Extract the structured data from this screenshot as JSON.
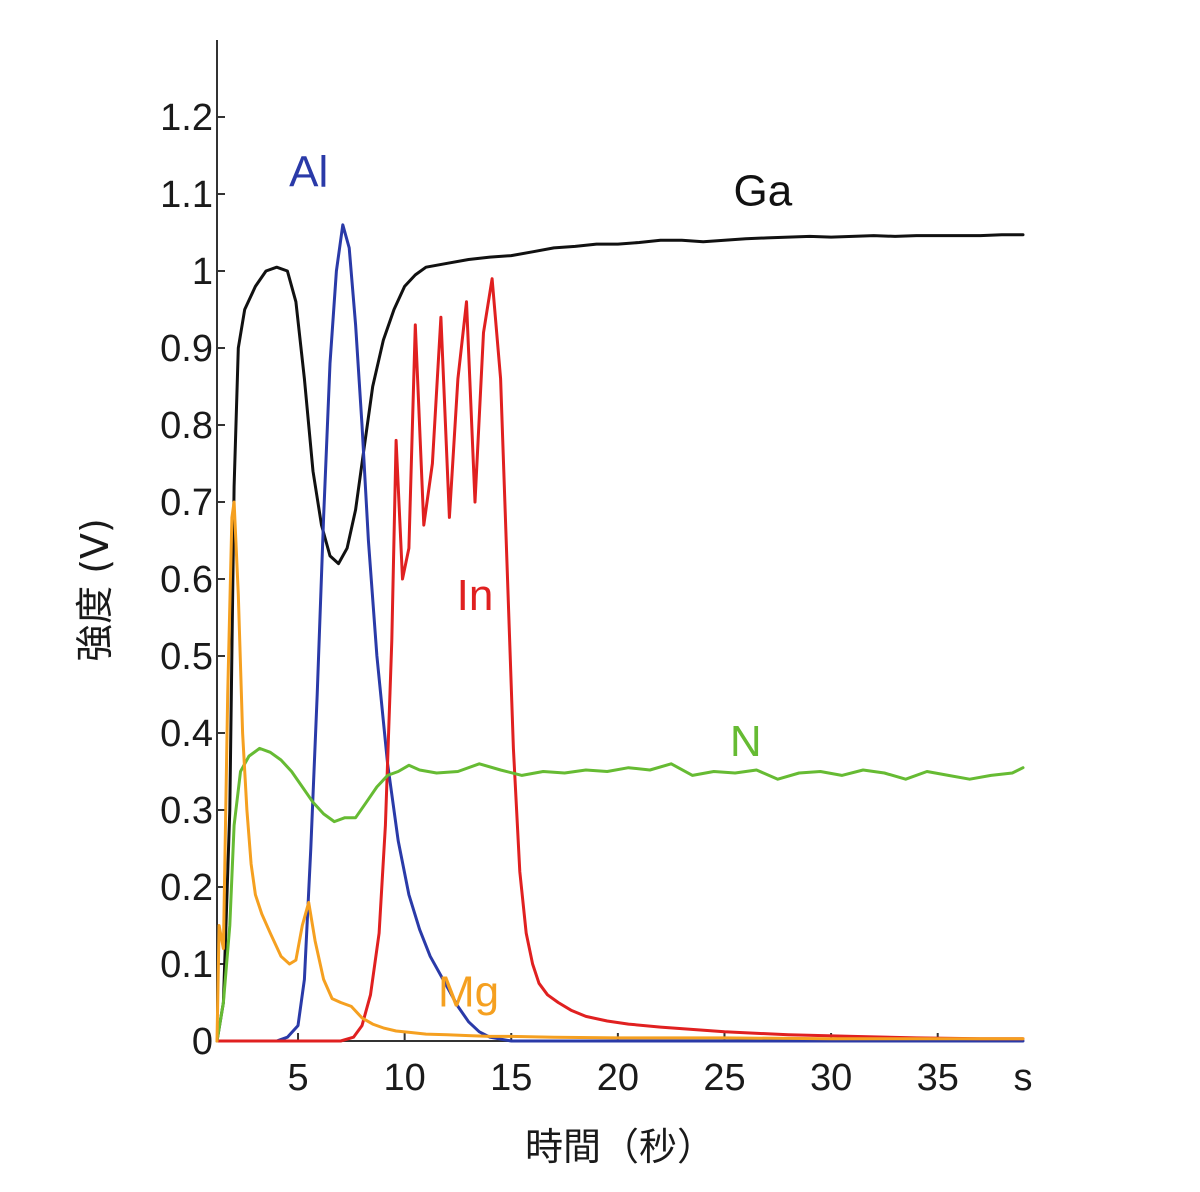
{
  "chart_data": {
    "type": "line",
    "title": "",
    "xlabel": "時間（秒）",
    "ylabel": "強度 (V)",
    "x_unit_label": "s",
    "xlim": [
      1.2,
      39
    ],
    "ylim": [
      0,
      1.3
    ],
    "x_ticks": [
      {
        "value": 5,
        "label": "5"
      },
      {
        "value": 10,
        "label": "10"
      },
      {
        "value": 15,
        "label": "15"
      },
      {
        "value": 20,
        "label": "20"
      },
      {
        "value": 25,
        "label": "25"
      },
      {
        "value": 30,
        "label": "30"
      },
      {
        "value": 35,
        "label": "35"
      }
    ],
    "y_ticks": [
      {
        "value": 0,
        "label": "0"
      },
      {
        "value": 0.1,
        "label": "0.1"
      },
      {
        "value": 0.2,
        "label": "0.2"
      },
      {
        "value": 0.3,
        "label": "0.3"
      },
      {
        "value": 0.4,
        "label": "0.4"
      },
      {
        "value": 0.5,
        "label": "0.5"
      },
      {
        "value": 0.6,
        "label": "0.6"
      },
      {
        "value": 0.7,
        "label": "0.7"
      },
      {
        "value": 0.8,
        "label": "0.8"
      },
      {
        "value": 0.9,
        "label": "0.9"
      },
      {
        "value": 1.0,
        "label": "1"
      },
      {
        "value": 1.1,
        "label": "1.1"
      },
      {
        "value": 1.2,
        "label": "1.2"
      }
    ],
    "grid": false,
    "series": [
      {
        "name": "Ga",
        "color": "#111111",
        "label_pos": {
          "x": 26.8,
          "y": 1.085
        },
        "x": [
          1.2,
          1.5,
          1.8,
          2.0,
          2.2,
          2.5,
          3.0,
          3.5,
          4.0,
          4.5,
          4.9,
          5.3,
          5.7,
          6.1,
          6.5,
          6.9,
          7.3,
          7.7,
          8.1,
          8.5,
          9.0,
          9.5,
          10.0,
          10.5,
          11.0,
          12.0,
          13.0,
          14.0,
          15.0,
          16.0,
          17.0,
          18.0,
          19.0,
          20.0,
          21.0,
          22.0,
          23.0,
          24.0,
          25.0,
          26.0,
          27.0,
          28.0,
          29.0,
          30.0,
          31.0,
          32.0,
          33.0,
          34.0,
          35.0,
          36.0,
          37.0,
          38.0,
          39.0
        ],
        "y": [
          0.0,
          0.05,
          0.3,
          0.72,
          0.9,
          0.95,
          0.98,
          1.0,
          1.005,
          1.0,
          0.96,
          0.86,
          0.74,
          0.67,
          0.63,
          0.62,
          0.64,
          0.69,
          0.77,
          0.85,
          0.91,
          0.95,
          0.98,
          0.995,
          1.005,
          1.01,
          1.015,
          1.018,
          1.02,
          1.025,
          1.03,
          1.032,
          1.035,
          1.035,
          1.037,
          1.04,
          1.04,
          1.038,
          1.04,
          1.042,
          1.043,
          1.044,
          1.045,
          1.044,
          1.045,
          1.046,
          1.045,
          1.046,
          1.046,
          1.046,
          1.046,
          1.047,
          1.047
        ]
      },
      {
        "name": "Al",
        "color": "#2a3aa8",
        "label_pos": {
          "x": 5.5,
          "y": 1.11
        },
        "x": [
          1.2,
          3.0,
          4.0,
          4.5,
          5.0,
          5.3,
          5.6,
          5.9,
          6.2,
          6.5,
          6.8,
          7.1,
          7.4,
          7.7,
          8.0,
          8.3,
          8.7,
          9.2,
          9.7,
          10.2,
          10.7,
          11.2,
          12.0,
          12.5,
          13.0,
          13.5,
          14.0,
          15.0,
          20.0,
          30.0,
          39.0
        ],
        "y": [
          0.0,
          0.0,
          0.0,
          0.005,
          0.02,
          0.08,
          0.25,
          0.45,
          0.68,
          0.88,
          1.0,
          1.06,
          1.03,
          0.93,
          0.8,
          0.65,
          0.5,
          0.36,
          0.26,
          0.19,
          0.145,
          0.11,
          0.07,
          0.045,
          0.025,
          0.012,
          0.005,
          0.0,
          0.0,
          0.0,
          0.0
        ]
      },
      {
        "name": "In",
        "color": "#e02020",
        "label_pos": {
          "x": 13.3,
          "y": 0.56
        },
        "x": [
          1.2,
          7.0,
          7.6,
          8.0,
          8.4,
          8.8,
          9.1,
          9.4,
          9.6,
          9.9,
          10.2,
          10.5,
          10.9,
          11.3,
          11.7,
          12.1,
          12.5,
          12.9,
          13.3,
          13.7,
          14.1,
          14.5,
          14.8,
          15.1,
          15.4,
          15.7,
          16.0,
          16.3,
          16.7,
          17.2,
          17.8,
          18.5,
          19.5,
          20.5,
          22.0,
          25.0,
          28.0,
          31.0,
          34.0,
          37.0,
          39.0
        ],
        "y": [
          0.0,
          0.0,
          0.005,
          0.02,
          0.06,
          0.14,
          0.28,
          0.52,
          0.78,
          0.6,
          0.64,
          0.93,
          0.67,
          0.75,
          0.94,
          0.68,
          0.86,
          0.96,
          0.7,
          0.92,
          0.99,
          0.86,
          0.62,
          0.38,
          0.22,
          0.14,
          0.1,
          0.075,
          0.06,
          0.05,
          0.04,
          0.032,
          0.026,
          0.022,
          0.018,
          0.012,
          0.008,
          0.006,
          0.004,
          0.003,
          0.003
        ]
      },
      {
        "name": "N",
        "color": "#66bb33",
        "label_pos": {
          "x": 26.0,
          "y": 0.37
        },
        "x": [
          1.2,
          1.5,
          1.8,
          2.0,
          2.3,
          2.7,
          3.2,
          3.7,
          4.2,
          4.7,
          5.2,
          5.7,
          6.2,
          6.7,
          7.2,
          7.7,
          8.2,
          8.7,
          9.2,
          9.7,
          10.2,
          10.7,
          11.5,
          12.5,
          13.5,
          14.5,
          15.5,
          16.5,
          17.5,
          18.5,
          19.5,
          20.5,
          21.5,
          22.5,
          23.5,
          24.5,
          25.5,
          26.5,
          27.5,
          28.5,
          29.5,
          30.5,
          31.5,
          32.5,
          33.5,
          34.5,
          35.5,
          36.5,
          37.5,
          38.5,
          39.0
        ],
        "y": [
          0.0,
          0.05,
          0.15,
          0.28,
          0.35,
          0.37,
          0.38,
          0.375,
          0.365,
          0.35,
          0.33,
          0.31,
          0.295,
          0.285,
          0.29,
          0.29,
          0.31,
          0.33,
          0.345,
          0.35,
          0.358,
          0.352,
          0.348,
          0.35,
          0.36,
          0.352,
          0.345,
          0.35,
          0.348,
          0.352,
          0.35,
          0.355,
          0.352,
          0.36,
          0.345,
          0.35,
          0.348,
          0.352,
          0.34,
          0.348,
          0.35,
          0.345,
          0.352,
          0.348,
          0.34,
          0.35,
          0.345,
          0.34,
          0.345,
          0.348,
          0.355
        ]
      },
      {
        "name": "Mg",
        "color": "#f5a020",
        "label_pos": {
          "x": 13.0,
          "y": 0.045
        },
        "x": [
          1.2,
          1.3,
          1.5,
          1.7,
          1.9,
          2.0,
          2.2,
          2.4,
          2.6,
          2.8,
          3.0,
          3.3,
          3.7,
          4.2,
          4.6,
          4.9,
          5.2,
          5.5,
          5.8,
          6.2,
          6.6,
          7.0,
          7.5,
          8.0,
          8.5,
          9.0,
          9.6,
          10.3,
          11.0,
          12.0,
          13.0,
          14.0,
          15.0,
          17.0,
          20.0,
          25.0,
          30.0,
          35.0,
          39.0
        ],
        "y": [
          0.0,
          0.15,
          0.12,
          0.45,
          0.68,
          0.7,
          0.58,
          0.4,
          0.3,
          0.23,
          0.19,
          0.165,
          0.14,
          0.11,
          0.1,
          0.105,
          0.15,
          0.18,
          0.13,
          0.08,
          0.055,
          0.05,
          0.045,
          0.03,
          0.022,
          0.017,
          0.013,
          0.011,
          0.009,
          0.008,
          0.007,
          0.006,
          0.006,
          0.005,
          0.004,
          0.004,
          0.003,
          0.003,
          0.003
        ]
      }
    ]
  }
}
